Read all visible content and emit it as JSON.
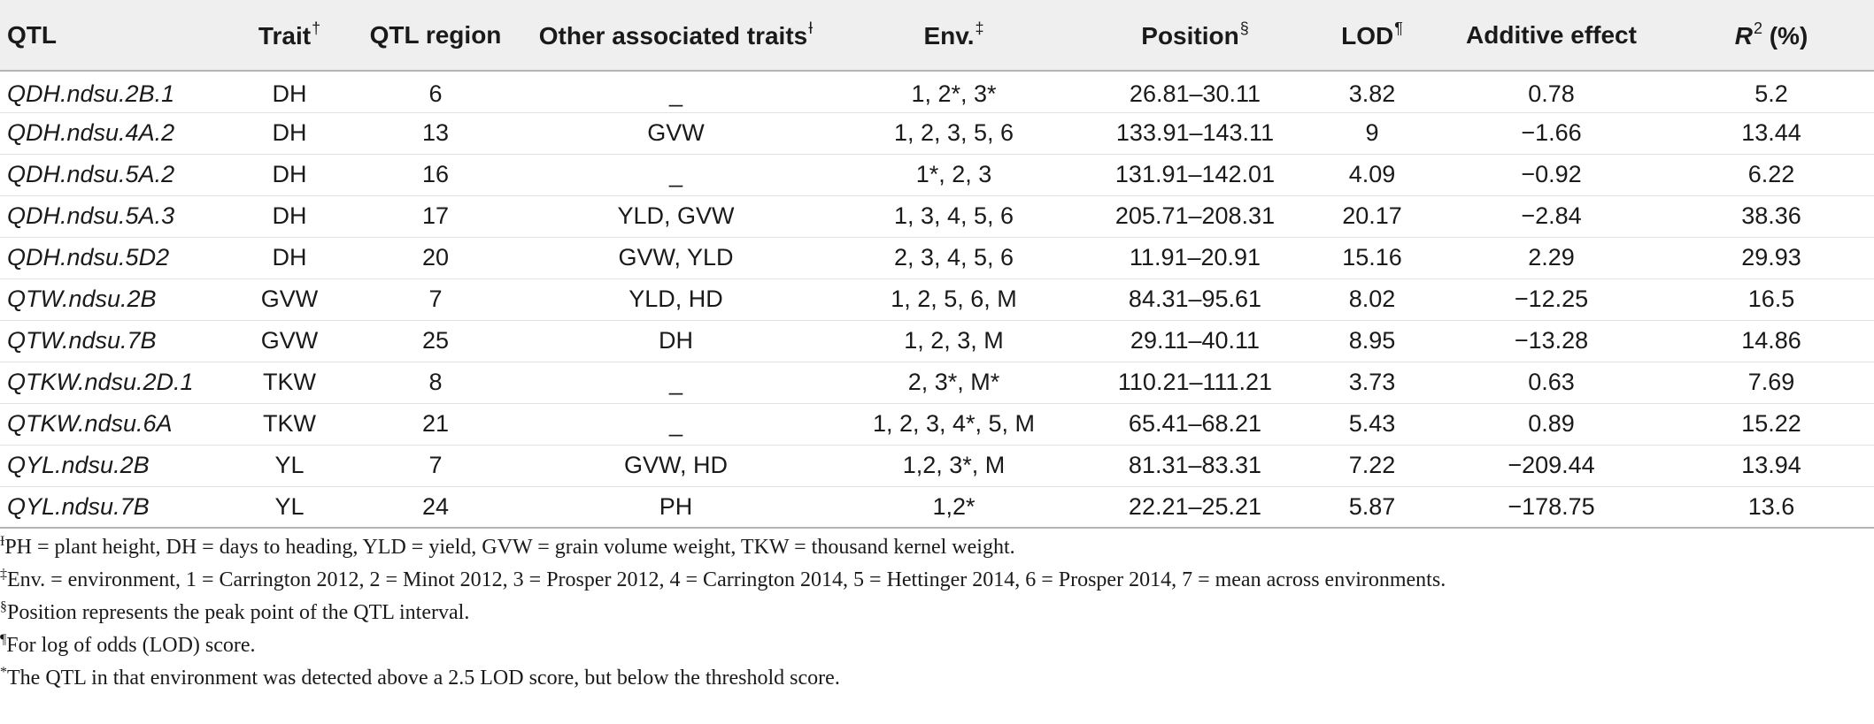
{
  "table": {
    "headers": {
      "qtl": "QTL",
      "trait": "Trait",
      "trait_mark": "†",
      "region": "QTL region",
      "other": "Other associated traits",
      "other_mark": "Ɨ",
      "env": "Env.",
      "env_mark": "‡",
      "position": "Position",
      "position_mark": "§",
      "lod": "LOD",
      "lod_mark": "¶",
      "additive": "Additive effect",
      "r2": "R",
      "r2_sup": "2",
      "r2_unit": " (%)"
    },
    "rows": [
      {
        "qtl": "QDH.ndsu.2B.1",
        "trait": "DH",
        "region": "6",
        "other": "_",
        "env": "1, 2*, 3*",
        "position": "26.81–30.11",
        "lod": "3.82",
        "additive": "0.78",
        "r2": "5.2"
      },
      {
        "qtl": "QDH.ndsu.4A.2",
        "trait": "DH",
        "region": "13",
        "other": "GVW",
        "env": "1, 2, 3, 5, 6",
        "position": "133.91–143.11",
        "lod": "9",
        "additive": "−1.66",
        "r2": "13.44"
      },
      {
        "qtl": "QDH.ndsu.5A.2",
        "trait": "DH",
        "region": "16",
        "other": "_",
        "env": "1*, 2, 3",
        "position": "131.91–142.01",
        "lod": "4.09",
        "additive": "−0.92",
        "r2": "6.22"
      },
      {
        "qtl": "QDH.ndsu.5A.3",
        "trait": "DH",
        "region": "17",
        "other": "YLD, GVW",
        "env": "1, 3, 4, 5, 6",
        "position": "205.71–208.31",
        "lod": "20.17",
        "additive": "−2.84",
        "r2": "38.36"
      },
      {
        "qtl": "QDH.ndsu.5D2",
        "trait": "DH",
        "region": "20",
        "other": "GVW, YLD",
        "env": "2, 3, 4, 5, 6",
        "position": "11.91–20.91",
        "lod": "15.16",
        "additive": "2.29",
        "r2": "29.93"
      },
      {
        "qtl": "QTW.ndsu.2B",
        "trait": "GVW",
        "region": "7",
        "other": "YLD, HD",
        "env": "1, 2, 5, 6, M",
        "position": "84.31–95.61",
        "lod": "8.02",
        "additive": "−12.25",
        "r2": "16.5"
      },
      {
        "qtl": "QTW.ndsu.7B",
        "trait": "GVW",
        "region": "25",
        "other": "DH",
        "env": "1, 2, 3, M",
        "position": "29.11–40.11",
        "lod": "8.95",
        "additive": "−13.28",
        "r2": "14.86"
      },
      {
        "qtl": "QTKW.ndsu.2D.1",
        "trait": "TKW",
        "region": "8",
        "other": "_",
        "env": "2, 3*, M*",
        "position": "110.21–111.21",
        "lod": "3.73",
        "additive": "0.63",
        "r2": "7.69"
      },
      {
        "qtl": "QTKW.ndsu.6A",
        "trait": "TKW",
        "region": "21",
        "other": "_",
        "env": "1, 2, 3, 4*, 5, M",
        "position": "65.41–68.21",
        "lod": "5.43",
        "additive": "0.89",
        "r2": "15.22"
      },
      {
        "qtl": "QYL.ndsu.2B",
        "trait": "YL",
        "region": "7",
        "other": "GVW, HD",
        "env": "1,2, 3*, M",
        "position": "81.31–83.31",
        "lod": "7.22",
        "additive": "−209.44",
        "r2": "13.94"
      },
      {
        "qtl": "QYL.ndsu.7B",
        "trait": "YL",
        "region": "24",
        "other": "PH",
        "env": "1,2*",
        "position": "22.21–25.21",
        "lod": "5.87",
        "additive": "−178.75",
        "r2": "13.6"
      }
    ]
  },
  "notes": [
    {
      "mark": "Ɨ",
      "text": "PH = plant height, DH = days to heading, YLD = yield, GVW = grain volume weight, TKW = thousand kernel weight."
    },
    {
      "mark": "‡",
      "text": "Env. = environment, 1 = Carrington 2012, 2 = Minot 2012, 3 = Prosper 2012, 4 = Carrington 2014, 5 = Hettinger 2014, 6 = Prosper 2014, 7 = mean across environments."
    },
    {
      "mark": "§",
      "text": "Position represents the peak point of the QTL interval."
    },
    {
      "mark": "¶",
      "text": "For log of odds (LOD) score."
    },
    {
      "mark": "*",
      "text": "The QTL in that environment was detected above a 2.5 LOD score, but below the threshold score."
    }
  ]
}
